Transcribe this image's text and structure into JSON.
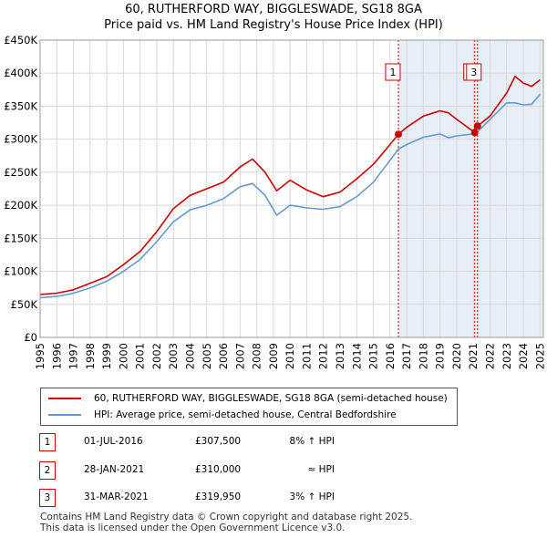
{
  "title_line1": "60, RUTHERFORD WAY, BIGGLESWADE, SG18 8GA",
  "title_line2": "Price paid vs. HM Land Registry's House Price Index (HPI)",
  "chart_data": {
    "type": "line",
    "title": "60, RUTHERFORD WAY, BIGGLESWADE, SG18 8GA",
    "subtitle": "Price paid vs. HM Land Registry's House Price Index (HPI)",
    "xlim": [
      1995,
      2025.2
    ],
    "ylim": [
      0,
      450000
    ],
    "y_ticks": [
      0,
      50000,
      100000,
      150000,
      200000,
      250000,
      300000,
      350000,
      400000,
      450000
    ],
    "y_tick_labels": [
      "£0",
      "£50K",
      "£100K",
      "£150K",
      "£200K",
      "£250K",
      "£300K",
      "£350K",
      "£400K",
      "£450K"
    ],
    "x_ticks": [
      1995,
      1996,
      1997,
      1998,
      1999,
      2000,
      2001,
      2002,
      2003,
      2004,
      2005,
      2006,
      2007,
      2008,
      2009,
      2010,
      2011,
      2012,
      2013,
      2014,
      2015,
      2016,
      2017,
      2018,
      2019,
      2020,
      2021,
      2022,
      2023,
      2024,
      2025
    ],
    "grid": true,
    "shaded_region": [
      2016.5,
      2025.2
    ],
    "series": [
      {
        "name": "60, RUTHERFORD WAY, BIGGLESWADE, SG18 8GA (semi-detached house)",
        "color": "#cc0000",
        "x": [
          1995,
          1996,
          1997,
          1998,
          1999,
          2000,
          2001,
          2002,
          2003,
          2004,
          2005,
          2006,
          2007,
          2007.75,
          2008.5,
          2009.2,
          2010,
          2011,
          2012,
          2013,
          2014,
          2015,
          2016,
          2016.5,
          2017,
          2018,
          2019,
          2019.5,
          2020,
          2021.08,
          2021.25,
          2022,
          2023,
          2023.5,
          2024,
          2024.5,
          2025
        ],
        "values": [
          65000,
          67000,
          72000,
          82000,
          92000,
          110000,
          130000,
          160000,
          195000,
          215000,
          225000,
          235000,
          258000,
          270000,
          250000,
          222000,
          238000,
          223000,
          213000,
          220000,
          240000,
          262000,
          292000,
          307500,
          318000,
          335000,
          343000,
          340000,
          330000,
          310000,
          319950,
          335000,
          370000,
          395000,
          385000,
          380000,
          390000
        ]
      },
      {
        "name": "HPI: Average price, semi-detached house, Central Bedfordshire",
        "color": "#6699cc",
        "x": [
          1995,
          1996,
          1997,
          1998,
          1999,
          2000,
          2001,
          2002,
          2003,
          2004,
          2005,
          2006,
          2007,
          2007.75,
          2008.5,
          2009.2,
          2010,
          2011,
          2012,
          2013,
          2014,
          2015,
          2016,
          2016.5,
          2017,
          2018,
          2019,
          2019.5,
          2020,
          2021,
          2021.25,
          2022,
          2023,
          2023.5,
          2024,
          2024.5,
          2025
        ],
        "values": [
          60000,
          62000,
          67000,
          75000,
          85000,
          100000,
          118000,
          145000,
          175000,
          193000,
          200000,
          210000,
          228000,
          233000,
          215000,
          185000,
          200000,
          196000,
          194000,
          198000,
          213000,
          235000,
          268000,
          285000,
          292000,
          303000,
          308000,
          302000,
          305000,
          308000,
          311000,
          330000,
          355000,
          355000,
          352000,
          353000,
          368000
        ]
      }
    ],
    "markers": [
      {
        "label": "1",
        "x": 2016.5,
        "y": 307500
      },
      {
        "label": "2",
        "x": 2021.08,
        "y": 310000
      },
      {
        "label": "3",
        "x": 2021.25,
        "y": 319950
      }
    ]
  },
  "legend": {
    "price_paid": "60, RUTHERFORD WAY, BIGGLESWADE, SG18 8GA (semi-detached house)",
    "hpi": "HPI: Average price, semi-detached house, Central Bedfordshire",
    "price_color": "#cc0000",
    "hpi_color": "#6699cc"
  },
  "transactions": [
    {
      "num": "1",
      "date": "01-JUL-2016",
      "price": "£307,500",
      "hpi": "8% ↑ HPI"
    },
    {
      "num": "2",
      "date": "28-JAN-2021",
      "price": "£310,000",
      "hpi": "≈ HPI"
    },
    {
      "num": "3",
      "date": "31-MAR-2021",
      "price": "£319,950",
      "hpi": "3% ↑ HPI"
    }
  ],
  "footer_line1": "Contains HM Land Registry data © Crown copyright and database right 2025.",
  "footer_line2": "This data is licensed under the Open Government Licence v3.0."
}
